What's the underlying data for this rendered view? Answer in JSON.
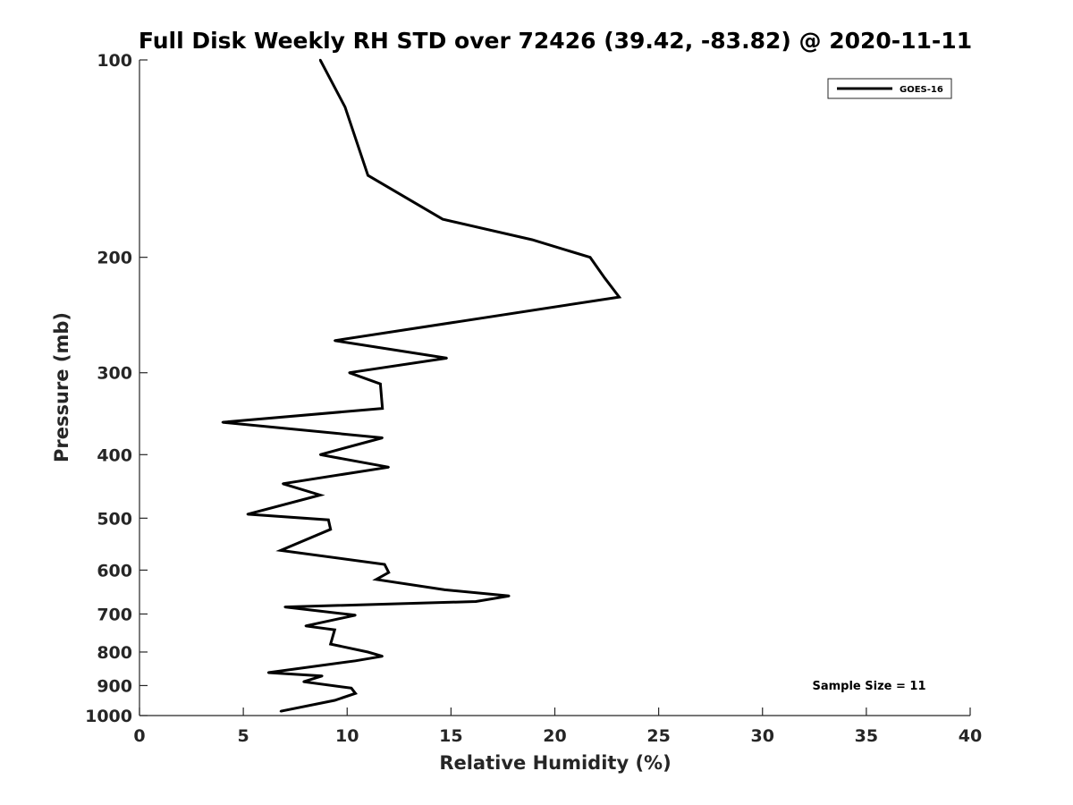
{
  "chart_data": {
    "type": "line",
    "title": "Full Disk Weekly RH STD over 72426 (39.42, -83.82) @ 2020-11-11",
    "xlabel": "Relative Humidity (%)",
    "ylabel": "Pressure (mb)",
    "xlim": [
      0,
      40
    ],
    "ylim": [
      100,
      1000
    ],
    "yscale": "log",
    "y_reversed": true,
    "xticks": [
      0,
      5,
      10,
      15,
      20,
      25,
      30,
      35,
      40
    ],
    "yticks": [
      100,
      200,
      300,
      400,
      500,
      600,
      700,
      800,
      900,
      1000
    ],
    "grid": false,
    "legend_position": "top-right",
    "series": [
      {
        "name": "GOES-16",
        "color": "#000000",
        "x": [
          8.7,
          9.9,
          11.0,
          14.6,
          18.9,
          21.7,
          22.4,
          23.1,
          9.4,
          14.8,
          10.1,
          11.6,
          11.7,
          4.0,
          11.7,
          8.7,
          12.0,
          6.9,
          8.7,
          5.2,
          9.1,
          9.2,
          6.8,
          11.8,
          12.0,
          11.4,
          14.7,
          17.8,
          16.2,
          7.0,
          10.4,
          8.0,
          9.4,
          9.2,
          11.0,
          11.7,
          10.4,
          6.2,
          8.8,
          7.9,
          10.2,
          10.4,
          9.4,
          6.8
        ],
        "y": [
          100,
          118,
          150,
          175,
          188,
          200,
          215,
          230,
          268,
          285,
          300,
          312,
          340,
          357,
          377,
          400,
          418,
          443,
          461,
          493,
          503,
          520,
          560,
          588,
          605,
          620,
          643,
          657,
          670,
          683,
          703,
          730,
          740,
          778,
          800,
          812,
          825,
          860,
          870,
          888,
          908,
          925,
          948,
          985
        ]
      }
    ],
    "annotations": [
      {
        "text": "Sample Size = 11"
      }
    ]
  }
}
